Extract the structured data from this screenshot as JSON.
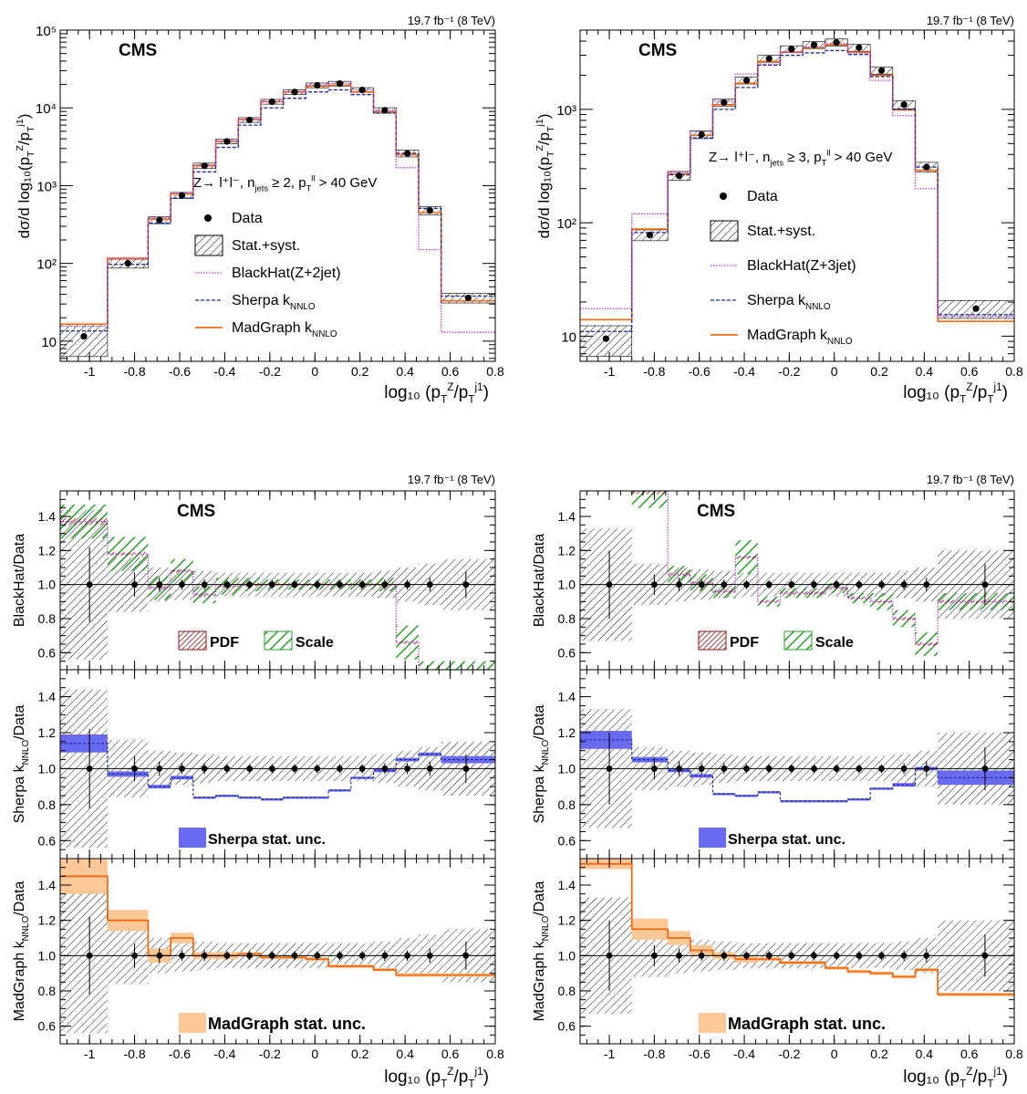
{
  "colors": {
    "madgraph": "#f36b12",
    "madgraph_band": "#fdc898",
    "sherpa": "#1a2a9a",
    "sherpa_band": "#6a6af0",
    "blackhat": "#b040d0",
    "pdf": "#8b1a1a",
    "scale": "#2aa02a",
    "hatch": "#000000"
  },
  "chart_data": [
    {
      "id": "dist2",
      "type": "line",
      "title": "",
      "lumi": "19.7 fb⁻¹ (8 TeV)",
      "cms_label": "CMS",
      "process_label": "Z→ l⁺l⁻, n_jets ≥ 2, p_T^ll > 40 GeV",
      "xlabel": "log₁₀ (p_T^Z/p_T^j1)",
      "ylabel": "dσ/d log₁₀(p_T^Z/p_T^j1)",
      "y_scale": "log",
      "xlim": [
        -1.13,
        0.8
      ],
      "ylim": [
        5.5,
        100000
      ],
      "x_ticks": [
        "-1",
        "-0.8",
        "-0.6",
        "-0.4",
        "-0.2",
        "0",
        "0.2",
        "0.4",
        "0.6",
        "0.8"
      ],
      "y_ticks": [
        "10",
        "10²",
        "10³",
        "10⁴",
        "10⁵"
      ],
      "bin_edges": [
        -1.13,
        -0.92,
        -0.74,
        -0.64,
        -0.54,
        -0.44,
        -0.34,
        -0.24,
        -0.14,
        -0.04,
        0.06,
        0.16,
        0.26,
        0.36,
        0.46,
        0.56,
        0.8
      ],
      "data": [
        11.5,
        100,
        360,
        750,
        1800,
        3700,
        7000,
        12000,
        16000,
        19500,
        20500,
        17000,
        9300,
        2600,
        480,
        36
      ],
      "syst_rel": [
        0.45,
        0.13,
        0.1,
        0.09,
        0.08,
        0.07,
        0.07,
        0.07,
        0.07,
        0.07,
        0.07,
        0.07,
        0.08,
        0.1,
        0.12,
        0.14
      ],
      "series": [
        {
          "name": "MadGraph k_NNLO",
          "style": "solid",
          "values": [
            16.5,
            115,
            370,
            780,
            1800,
            3700,
            7100,
            12000,
            16000,
            19000,
            19500,
            16000,
            9000,
            2500,
            450,
            33
          ]
        },
        {
          "name": "Sherpa k_NNLO",
          "style": "dashed",
          "values": [
            13.5,
            97,
            330,
            690,
            1500,
            3100,
            6000,
            10000,
            13300,
            16000,
            17000,
            14800,
            8600,
            2600,
            510,
            38
          ]
        },
        {
          "name": "BlackHat(Z+2jet)",
          "style": "dotted",
          "values": [
            15.5,
            118,
            385,
            810,
            1850,
            3750,
            7100,
            12100,
            16100,
            19600,
            20600,
            17100,
            9200,
            1700,
            150,
            13
          ]
        }
      ],
      "legend": [
        "Data",
        "Stat.+syst.",
        "BlackHat(Z+2jet)",
        "Sherpa k_NNLO",
        "MadGraph k_NNLO"
      ]
    },
    {
      "id": "dist3",
      "type": "line",
      "title": "",
      "lumi": "19.7 fb⁻¹ (8 TeV)",
      "cms_label": "CMS",
      "process_label": "Z→ l⁺l⁻, n_jets ≥ 3, p_T^ll > 40 GeV",
      "xlabel": "log₁₀ (p_T^Z/p_T^j1)",
      "ylabel": "dσ/d log₁₀(p_T^Z/p_T^j1)",
      "y_scale": "log",
      "xlim": [
        -1.13,
        0.8
      ],
      "ylim": [
        6,
        5000
      ],
      "x_ticks": [
        "-1",
        "-0.8",
        "-0.6",
        "-0.4",
        "-0.2",
        "0",
        "0.2",
        "0.4",
        "0.6",
        "0.8"
      ],
      "y_ticks": [
        "10",
        "10²",
        "10³"
      ],
      "bin_edges": [
        -1.13,
        -0.9,
        -0.74,
        -0.64,
        -0.54,
        -0.44,
        -0.34,
        -0.24,
        -0.14,
        -0.04,
        0.06,
        0.16,
        0.26,
        0.36,
        0.46,
        0.56,
        0.8
      ],
      "data": [
        9.5,
        78,
        260,
        600,
        1150,
        1800,
        2800,
        3400,
        3700,
        3900,
        3500,
        2200,
        1100,
        310,
        17.5
      ],
      "syst_rel": [
        0.3,
        0.11,
        0.09,
        0.08,
        0.07,
        0.07,
        0.07,
        0.07,
        0.07,
        0.07,
        0.07,
        0.07,
        0.08,
        0.1,
        0.18
      ],
      "bin_edges_override": [
        -1.13,
        -0.9,
        -0.74,
        -0.64,
        -0.54,
        -0.44,
        -0.34,
        -0.24,
        -0.14,
        -0.04,
        0.06,
        0.16,
        0.26,
        0.36,
        0.46,
        0.8
      ],
      "series": [
        {
          "name": "MadGraph k_NNLO",
          "style": "solid",
          "values": [
            14,
            88,
            270,
            590,
            1100,
            1700,
            2650,
            3200,
            3500,
            3700,
            3200,
            2000,
            990,
            290,
            13.5
          ]
        },
        {
          "name": "Sherpa k_NNLO",
          "style": "dashed",
          "values": [
            11,
            82,
            265,
            560,
            1000,
            1560,
            2450,
            3000,
            3150,
            3300,
            3050,
            1950,
            1000,
            310,
            15.5
          ]
        },
        {
          "name": "BlackHat(Z+3jet)",
          "style": "dotted",
          "values": [
            17.5,
            120,
            280,
            640,
            1180,
            2050,
            2500,
            3200,
            3550,
            3800,
            3150,
            1800,
            880,
            200,
            15
          ]
        }
      ],
      "legend": [
        "Data",
        "Stat.+syst.",
        "BlackHat(Z+3jet)",
        "Sherpa k_NNLO",
        "MadGraph k_NNLO"
      ]
    },
    {
      "id": "ratio2",
      "type": "line",
      "lumi": "19.7 fb⁻¹ (8 TeV)",
      "cms_label": "CMS",
      "xlabel": "log₁₀ (p_T^Z/p_T^j1)",
      "xlim": [
        -1.13,
        0.8
      ],
      "ylim": [
        0.5,
        1.55
      ],
      "x_ticks": [
        "-1",
        "-0.8",
        "-0.6",
        "-0.4",
        "-0.2",
        "0",
        "0.2",
        "0.4",
        "0.6",
        "0.8"
      ],
      "y_ticks": [
        "0.6",
        "0.8",
        "1.0",
        "1.2",
        "1.4"
      ],
      "bin_edges": [
        -1.13,
        -0.92,
        -0.74,
        -0.64,
        -0.54,
        -0.44,
        -0.34,
        -0.24,
        -0.14,
        -0.04,
        0.06,
        0.16,
        0.26,
        0.36,
        0.46,
        0.56,
        0.8
      ],
      "data_centers": [
        -1.0,
        -0.8,
        -0.69,
        -0.59,
        -0.49,
        -0.39,
        -0.29,
        -0.19,
        -0.09,
        0.01,
        0.11,
        0.21,
        0.31,
        0.41,
        0.51,
        0.67
      ],
      "data_err": [
        0.22,
        0.07,
        0.04,
        0.03,
        0.03,
        0.025,
        0.025,
        0.025,
        0.025,
        0.025,
        0.025,
        0.025,
        0.03,
        0.03,
        0.04,
        0.08
      ],
      "syst_rel": [
        0.44,
        0.16,
        0.1,
        0.09,
        0.08,
        0.07,
        0.07,
        0.07,
        0.07,
        0.07,
        0.07,
        0.07,
        0.08,
        0.1,
        0.12,
        0.15
      ],
      "panels": [
        {
          "ylabel": "BlackHat/Data",
          "ratio": [
            1.37,
            1.18,
            0.98,
            1.08,
            0.94,
            0.99,
            1.0,
            1.0,
            1.0,
            1.0,
            1.0,
            1.0,
            1.0,
            0.66,
            0.3,
            0.3
          ],
          "band_pdf": [
            0.02,
            0.01,
            0.01,
            0.01,
            0.01,
            0.01,
            0.01,
            0.01,
            0.01,
            0.01,
            0.01,
            0.01,
            0.01,
            0.01,
            0.01,
            0.01
          ],
          "band_scale": [
            0.1,
            0.1,
            0.07,
            0.07,
            0.05,
            0.05,
            0.04,
            0.03,
            0.03,
            0.03,
            0.03,
            0.03,
            0.04,
            0.1,
            0.25,
            0.25
          ],
          "legend": [
            "PDF",
            "Scale"
          ]
        },
        {
          "ylabel": "Sherpa k_NNLO/Data",
          "ratio": [
            1.14,
            0.97,
            0.9,
            0.95,
            0.84,
            0.85,
            0.84,
            0.83,
            0.84,
            0.84,
            0.88,
            0.95,
            0.99,
            1.05,
            1.08,
            1.05
          ],
          "band": [
            0.05,
            0.015,
            0.01,
            0.01,
            0.005,
            0.005,
            0.005,
            0.005,
            0.005,
            0.005,
            0.005,
            0.005,
            0.01,
            0.01,
            0.01,
            0.02
          ],
          "legend": [
            "Sherpa stat. unc."
          ]
        },
        {
          "ylabel": "MadGraph k_NNLO/Data",
          "ratio": [
            1.45,
            1.2,
            1.0,
            1.1,
            1.0,
            1.0,
            1.01,
            0.99,
            0.99,
            0.98,
            0.94,
            0.94,
            0.92,
            0.89,
            0.89,
            0.89
          ],
          "band": [
            0.1,
            0.06,
            0.04,
            0.03,
            0.02,
            0.02,
            0.01,
            0.01,
            0.01,
            0.01,
            0.01,
            0.01,
            0.01,
            0.01,
            0.01,
            0.01
          ],
          "legend": [
            "MadGraph stat. unc."
          ]
        }
      ]
    },
    {
      "id": "ratio3",
      "type": "line",
      "lumi": "19.7 fb⁻¹ (8 TeV)",
      "cms_label": "CMS",
      "xlabel": "log₁₀ (p_T^Z/p_T^j1)",
      "xlim": [
        -1.13,
        0.8
      ],
      "ylim": [
        0.5,
        1.55
      ],
      "x_ticks": [
        "-1",
        "-0.8",
        "-0.6",
        "-0.4",
        "-0.2",
        "0",
        "0.2",
        "0.4",
        "0.6",
        "0.8"
      ],
      "y_ticks": [
        "0.6",
        "0.8",
        "1.0",
        "1.2",
        "1.4"
      ],
      "bin_edges": [
        -1.13,
        -0.9,
        -0.74,
        -0.64,
        -0.54,
        -0.44,
        -0.34,
        -0.24,
        -0.14,
        -0.04,
        0.06,
        0.16,
        0.26,
        0.36,
        0.46,
        0.8
      ],
      "data_centers": [
        -1.0,
        -0.8,
        -0.69,
        -0.59,
        -0.49,
        -0.39,
        -0.29,
        -0.19,
        -0.09,
        0.01,
        0.11,
        0.21,
        0.31,
        0.41,
        0.67
      ],
      "data_err": [
        0.2,
        0.06,
        0.04,
        0.03,
        0.03,
        0.025,
        0.025,
        0.025,
        0.025,
        0.025,
        0.025,
        0.025,
        0.03,
        0.04,
        0.12
      ],
      "syst_rel": [
        0.33,
        0.12,
        0.1,
        0.09,
        0.08,
        0.07,
        0.07,
        0.07,
        0.07,
        0.07,
        0.07,
        0.07,
        0.08,
        0.1,
        0.2
      ],
      "panels": [
        {
          "ylabel": "BlackHat/Data",
          "ratio": [
            2.0,
            1.55,
            1.06,
            1.01,
            0.96,
            1.16,
            0.9,
            0.95,
            0.95,
            0.98,
            0.92,
            0.9,
            0.8,
            0.65,
            0.9
          ],
          "band_pdf": [
            0.02,
            0.02,
            0.01,
            0.01,
            0.01,
            0.01,
            0.01,
            0.01,
            0.01,
            0.01,
            0.01,
            0.01,
            0.01,
            0.01,
            0.01
          ],
          "band_scale": [
            0.2,
            0.1,
            0.05,
            0.05,
            0.04,
            0.1,
            0.03,
            0.03,
            0.03,
            0.03,
            0.03,
            0.05,
            0.05,
            0.07,
            0.05
          ],
          "legend": [
            "PDF",
            "Scale"
          ]
        },
        {
          "ylabel": "Sherpa k_NNLO/Data",
          "ratio": [
            1.16,
            1.05,
            0.99,
            0.96,
            0.86,
            0.85,
            0.87,
            0.82,
            0.82,
            0.82,
            0.83,
            0.89,
            0.91,
            1.0,
            0.95
          ],
          "band": [
            0.05,
            0.015,
            0.01,
            0.01,
            0.005,
            0.005,
            0.005,
            0.005,
            0.005,
            0.005,
            0.005,
            0.005,
            0.01,
            0.01,
            0.04
          ],
          "legend": [
            "Sherpa stat. unc."
          ]
        },
        {
          "ylabel": "MadGraph k_NNLO/Data",
          "ratio": [
            1.52,
            1.15,
            1.1,
            1.03,
            1.0,
            0.98,
            0.98,
            0.96,
            0.96,
            0.93,
            0.91,
            0.9,
            0.88,
            0.92,
            0.78
          ],
          "band": [
            0.03,
            0.06,
            0.04,
            0.03,
            0.02,
            0.02,
            0.01,
            0.01,
            0.01,
            0.01,
            0.01,
            0.01,
            0.01,
            0.01,
            0.01
          ],
          "legend": [
            "MadGraph stat. unc."
          ]
        }
      ]
    }
  ]
}
